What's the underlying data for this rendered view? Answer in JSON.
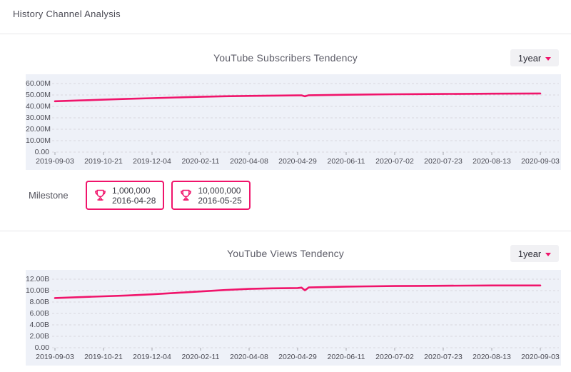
{
  "page": {
    "title": "History Channel Analysis"
  },
  "colors": {
    "accent": "#f0146b",
    "plot_bg": "#eef1f8",
    "grid_line": "#d8d8de",
    "tick_mark": "#a6a6ae",
    "axis_text": "#4c4c55"
  },
  "sections": [
    {
      "range_selector": {
        "value": "1year"
      },
      "milestone": {
        "label": "Milestone",
        "badges": [
          {
            "icon": "trophy-icon",
            "value": "1,000,000",
            "date": "2016-04-28"
          },
          {
            "icon": "trophy-icon",
            "value": "10,000,000",
            "date": "2016-05-25"
          }
        ]
      }
    },
    {
      "range_selector": {
        "value": "1year"
      }
    }
  ],
  "chart_data": [
    {
      "type": "line",
      "title": "YouTube Subscribers Tendency",
      "unit": "subscribers (millions)",
      "categories": [
        "2019-09-03",
        "2019-10-21",
        "2019-12-04",
        "2020-02-11",
        "2020-04-08",
        "2020-04-29",
        "2020-06-11",
        "2020-07-02",
        "2020-07-23",
        "2020-08-13",
        "2020-09-03"
      ],
      "values": [
        44.5,
        45.9,
        47.2,
        48.4,
        49.2,
        49.6,
        50.2,
        50.6,
        50.9,
        51.1,
        51.3
      ],
      "y_ticks": [
        "60.00M",
        "50.00M",
        "40.00M",
        "30.00M",
        "20.00M",
        "10.00M",
        "0.00"
      ],
      "ylim": [
        0,
        60
      ],
      "grid": "dashed-horizontal",
      "legend": "none",
      "line_color": "#f0146b",
      "detail_points": [
        [
          0,
          44.5
        ],
        [
          0.05,
          45.2
        ],
        [
          0.1,
          45.9
        ],
        [
          0.15,
          46.6
        ],
        [
          0.2,
          47.2
        ],
        [
          0.25,
          47.8
        ],
        [
          0.3,
          48.4
        ],
        [
          0.35,
          48.9
        ],
        [
          0.4,
          49.2
        ],
        [
          0.45,
          49.45
        ],
        [
          0.5,
          49.6
        ],
        [
          0.508,
          49.7
        ],
        [
          0.515,
          48.8
        ],
        [
          0.523,
          49.75
        ],
        [
          0.55,
          49.9
        ],
        [
          0.6,
          50.2
        ],
        [
          0.65,
          50.45
        ],
        [
          0.7,
          50.6
        ],
        [
          0.75,
          50.75
        ],
        [
          0.8,
          50.9
        ],
        [
          0.85,
          51.0
        ],
        [
          0.9,
          51.1
        ],
        [
          0.95,
          51.2
        ],
        [
          1,
          51.3
        ]
      ]
    },
    {
      "type": "line",
      "title": "YouTube Views Tendency",
      "unit": "views (billions)",
      "categories": [
        "2019-09-03",
        "2019-10-21",
        "2019-12-04",
        "2020-02-11",
        "2020-04-08",
        "2020-04-29",
        "2020-06-11",
        "2020-07-02",
        "2020-07-23",
        "2020-08-13",
        "2020-09-03"
      ],
      "values": [
        8.7,
        9.0,
        9.35,
        9.85,
        10.3,
        10.45,
        10.7,
        10.8,
        10.85,
        10.9,
        10.9
      ],
      "y_ticks": [
        "12.00B",
        "10.00B",
        "8.00B",
        "6.00B",
        "4.00B",
        "2.00B",
        "0.00"
      ],
      "ylim": [
        0,
        12
      ],
      "grid": "dashed-horizontal",
      "legend": "none",
      "line_color": "#f0146b",
      "detail_points": [
        [
          0,
          8.7
        ],
        [
          0.05,
          8.85
        ],
        [
          0.1,
          9.0
        ],
        [
          0.15,
          9.15
        ],
        [
          0.2,
          9.35
        ],
        [
          0.25,
          9.6
        ],
        [
          0.3,
          9.85
        ],
        [
          0.35,
          10.1
        ],
        [
          0.4,
          10.3
        ],
        [
          0.45,
          10.4
        ],
        [
          0.5,
          10.45
        ],
        [
          0.508,
          10.52
        ],
        [
          0.515,
          10.05
        ],
        [
          0.523,
          10.55
        ],
        [
          0.55,
          10.6
        ],
        [
          0.6,
          10.7
        ],
        [
          0.65,
          10.75
        ],
        [
          0.7,
          10.8
        ],
        [
          0.75,
          10.82
        ],
        [
          0.8,
          10.85
        ],
        [
          0.85,
          10.88
        ],
        [
          0.9,
          10.9
        ],
        [
          0.95,
          10.9
        ],
        [
          1,
          10.9
        ]
      ]
    }
  ]
}
